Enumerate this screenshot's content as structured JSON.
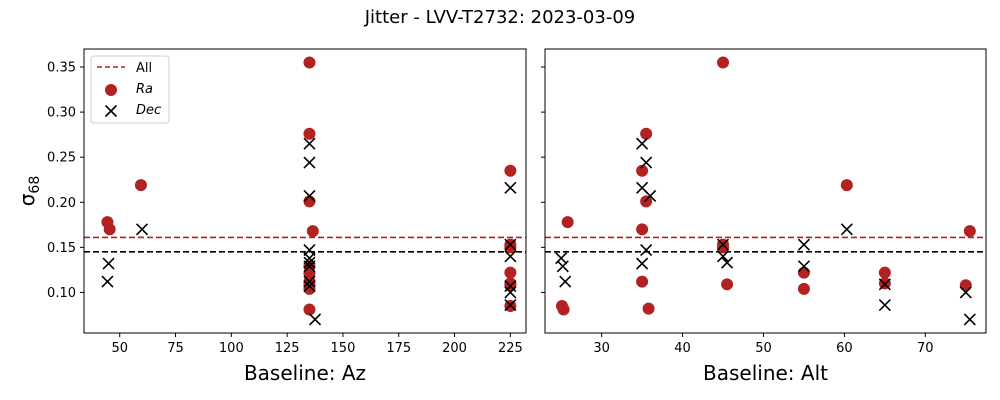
{
  "chart_data": {
    "type": "scatter",
    "title": "Jitter - LVV-T2732: 2023-03-09",
    "ylabel": "σ",
    "ylabel_sub": "68",
    "shared_y": true,
    "ylim": [
      0.055,
      0.37
    ],
    "yticks": [
      "0.10",
      "0.15",
      "0.20",
      "0.25",
      "0.30",
      "0.35"
    ],
    "ytick_values": [
      0.1,
      0.15,
      0.2,
      0.25,
      0.3,
      0.35
    ],
    "hlines": [
      {
        "name": "All",
        "y": 0.161,
        "color": "#b22222",
        "style": "dashed"
      },
      {
        "y": 0.145,
        "color": "#000000",
        "style": "dashed"
      }
    ],
    "legend": {
      "placement": "upper-left",
      "entries": [
        {
          "label": "All",
          "marker": "dashed-line",
          "color": "#b22222"
        },
        {
          "label": "Ra",
          "marker": "circle",
          "color": "#b22222"
        },
        {
          "label": "Dec",
          "marker": "x",
          "color": "#000000"
        }
      ]
    },
    "panels": [
      {
        "xlabel": "Baseline: Az",
        "xlim": [
          34,
          232
        ],
        "xticks": [
          "50",
          "75",
          "100",
          "125",
          "150",
          "175",
          "200",
          "225"
        ],
        "xtick_values": [
          50,
          75,
          100,
          125,
          150,
          175,
          200,
          225
        ],
        "legend": true,
        "series": [
          {
            "name": "Ra",
            "marker": "circle",
            "color": "#b22222",
            "points": [
              [
                44.5,
                0.178
              ],
              [
                45.5,
                0.17
              ],
              [
                59.5,
                0.219
              ],
              [
                135,
                0.355
              ],
              [
                135,
                0.276
              ],
              [
                135,
                0.201
              ],
              [
                136.5,
                0.168
              ],
              [
                135,
                0.129
              ],
              [
                135,
                0.121
              ],
              [
                135,
                0.112
              ],
              [
                135,
                0.104
              ],
              [
                135,
                0.108
              ],
              [
                135,
                0.081
              ],
              [
                225,
                0.235
              ],
              [
                225,
                0.153
              ],
              [
                225,
                0.15
              ],
              [
                225,
                0.122
              ],
              [
                225,
                0.11
              ],
              [
                225,
                0.108
              ],
              [
                225,
                0.085
              ]
            ]
          },
          {
            "name": "Dec",
            "marker": "x",
            "color": "#000000",
            "points": [
              [
                45,
                0.132
              ],
              [
                44.5,
                0.112
              ],
              [
                60,
                0.17
              ],
              [
                135,
                0.265
              ],
              [
                135,
                0.244
              ],
              [
                135,
                0.207
              ],
              [
                135,
                0.147
              ],
              [
                135,
                0.138
              ],
              [
                135,
                0.133
              ],
              [
                135,
                0.129
              ],
              [
                135,
                0.112
              ],
              [
                135,
                0.107
              ],
              [
                137.5,
                0.07
              ],
              [
                225,
                0.216
              ],
              [
                225,
                0.153
              ],
              [
                225,
                0.14
              ],
              [
                225,
                0.107
              ],
              [
                225,
                0.1
              ],
              [
                225,
                0.086
              ]
            ]
          }
        ]
      },
      {
        "xlabel": "Baseline: Alt",
        "xlim": [
          23,
          77.5
        ],
        "xticks": [
          "30",
          "40",
          "50",
          "60",
          "70"
        ],
        "xtick_values": [
          30,
          40,
          50,
          60,
          70
        ],
        "legend": false,
        "series": [
          {
            "name": "Ra",
            "marker": "circle",
            "color": "#b22222",
            "points": [
              [
                25.8,
                0.178
              ],
              [
                25.1,
                0.085
              ],
              [
                25.3,
                0.081
              ],
              [
                35,
                0.235
              ],
              [
                35,
                0.17
              ],
              [
                35,
                0.112
              ],
              [
                35.5,
                0.276
              ],
              [
                35.5,
                0.201
              ],
              [
                35.8,
                0.082
              ],
              [
                45,
                0.355
              ],
              [
                45,
                0.153
              ],
              [
                45,
                0.15
              ],
              [
                45.5,
                0.109
              ],
              [
                55,
                0.122
              ],
              [
                55,
                0.104
              ],
              [
                60.3,
                0.219
              ],
              [
                65,
                0.122
              ],
              [
                65,
                0.11
              ],
              [
                75,
                0.108
              ],
              [
                75.5,
                0.168
              ]
            ]
          },
          {
            "name": "Dec",
            "marker": "x",
            "color": "#000000",
            "points": [
              [
                25,
                0.138
              ],
              [
                25.2,
                0.129
              ],
              [
                25.5,
                0.112
              ],
              [
                35,
                0.265
              ],
              [
                35,
                0.216
              ],
              [
                35,
                0.132
              ],
              [
                35.5,
                0.244
              ],
              [
                35.5,
                0.147
              ],
              [
                36,
                0.207
              ],
              [
                45,
                0.153
              ],
              [
                45,
                0.14
              ],
              [
                45.5,
                0.133
              ],
              [
                55,
                0.153
              ],
              [
                55,
                0.129
              ],
              [
                60.3,
                0.17
              ],
              [
                65,
                0.109
              ],
              [
                65,
                0.086
              ],
              [
                75,
                0.1
              ],
              [
                75.5,
                0.07
              ]
            ]
          }
        ]
      }
    ]
  }
}
